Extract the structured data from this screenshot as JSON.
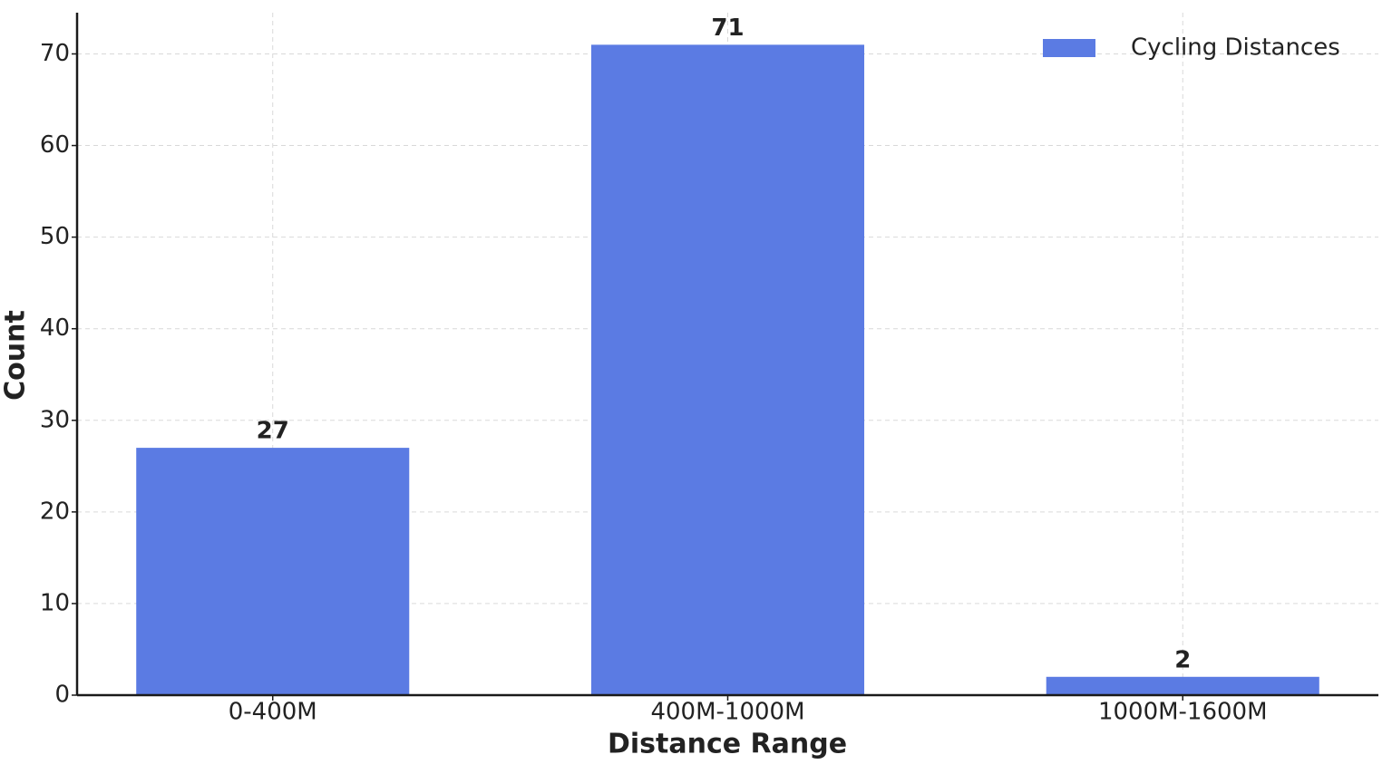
{
  "chart_data": {
    "type": "bar",
    "x_label": "Distance Range",
    "y_label": "Count",
    "categories": [
      "0-400M",
      "400M-1000M",
      "1000M-1600M"
    ],
    "series": [
      {
        "name": "Cycling Distances",
        "color": "#5b7be3",
        "values": [
          27,
          71,
          2
        ]
      }
    ],
    "ylim": [
      0,
      74.5
    ],
    "yticks": [
      0,
      10,
      20,
      30,
      40,
      50,
      60,
      70
    ],
    "grid": true,
    "legend": "upper right",
    "value_labels_shown": true
  }
}
